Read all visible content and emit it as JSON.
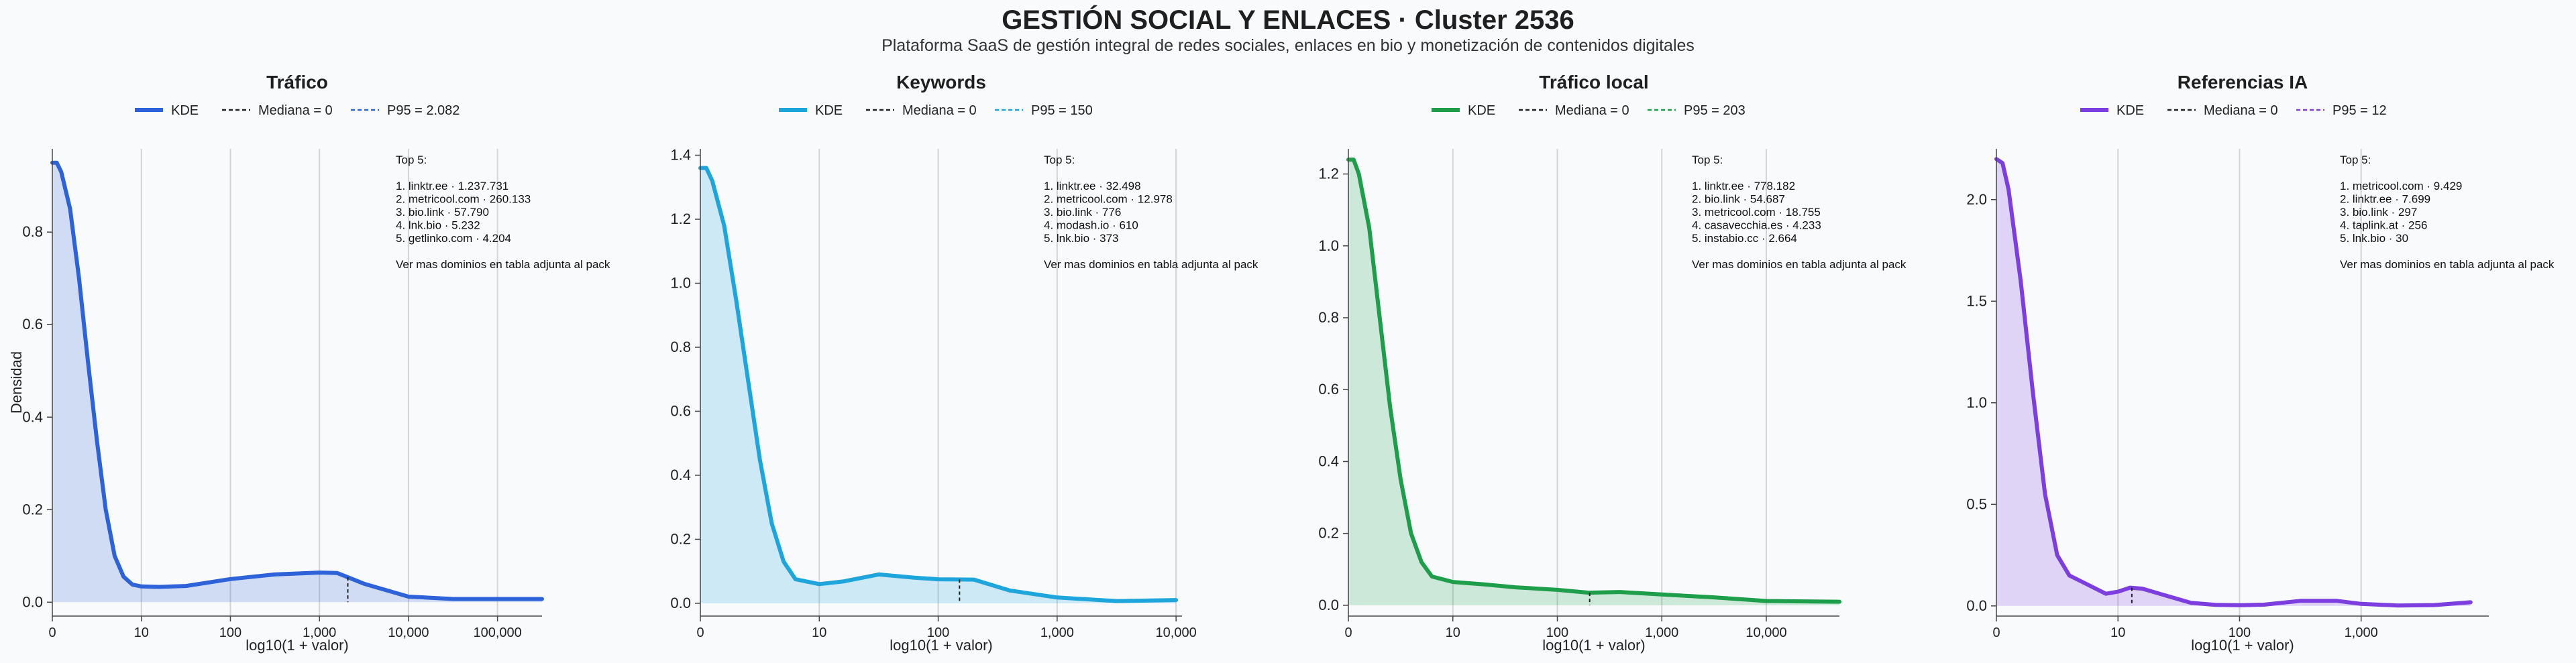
{
  "title": "GESTIÓN SOCIAL Y ENLACES · Cluster 2536",
  "subtitle": "Plataforma SaaS de gestión integral de redes sociales, enlaces en bio y monetización de contenidos digitales",
  "colors": {
    "traffic": "#2e62d9",
    "keywords": "#1ea5dc",
    "local": "#1e9e4a",
    "ai": "#7d3ee0",
    "median": "#222222"
  },
  "chart_data": [
    {
      "type": "area",
      "title": "Tráfico",
      "xlabel": "log10(1 + valor)",
      "ylabel": "Densidad",
      "x_scale": "log10(1+x)",
      "xlim": [
        0,
        5.5
      ],
      "ylim": [
        -0.03,
        0.98
      ],
      "x_ticks": [
        0,
        1,
        2,
        3,
        4,
        5
      ],
      "x_tick_labels": [
        "0",
        "10",
        "100",
        "1,000",
        "10,000",
        "100,000"
      ],
      "y_ticks": [
        0,
        0.2,
        0.4,
        0.6,
        0.8
      ],
      "y_tick_labels": [
        "0.0",
        "0.2",
        "0.4",
        "0.6",
        "0.8"
      ],
      "legend": [
        "KDE",
        "Mediana = 0",
        "P95 = 2.082"
      ],
      "legend_position": "top-center",
      "grid": "vertical",
      "median": 0,
      "p95": 2082,
      "color_key": "traffic",
      "x": [
        0,
        0.05,
        0.1,
        0.2,
        0.3,
        0.4,
        0.5,
        0.6,
        0.7,
        0.8,
        0.9,
        1.0,
        1.2,
        1.5,
        2.0,
        2.5,
        3.0,
        3.2,
        3.5,
        4.0,
        4.5,
        5.0,
        5.5
      ],
      "y": [
        0.95,
        0.95,
        0.93,
        0.85,
        0.7,
        0.52,
        0.35,
        0.2,
        0.1,
        0.055,
        0.038,
        0.034,
        0.033,
        0.035,
        0.05,
        0.06,
        0.064,
        0.063,
        0.04,
        0.012,
        0.007,
        0.007,
        0.007
      ],
      "annotation": [
        "Top 5:",
        "",
        "1. linktr.ee · 1.237.731",
        "2. metricool.com · 260.133",
        "3. bio.link · 57.790",
        "4. lnk.bio · 5.232",
        "5. getlinko.com · 4.204",
        "",
        "Ver mas dominios en tabla adjunta al pack"
      ]
    },
    {
      "type": "area",
      "title": "Keywords",
      "xlabel": "log10(1 + valor)",
      "ylabel": "",
      "x_scale": "log10(1+x)",
      "xlim": [
        0,
        4.05
      ],
      "ylim": [
        -0.04,
        1.42
      ],
      "x_ticks": [
        0,
        1,
        2,
        3,
        4
      ],
      "x_tick_labels": [
        "0",
        "10",
        "100",
        "1,000",
        "10,000"
      ],
      "y_ticks": [
        0,
        0.2,
        0.4,
        0.6,
        0.8,
        1.0,
        1.2,
        1.4
      ],
      "y_tick_labels": [
        "0.0",
        "0.2",
        "0.4",
        "0.6",
        "0.8",
        "1.0",
        "1.2",
        "1.4"
      ],
      "legend": [
        "KDE",
        "Mediana = 0",
        "P95 = 150"
      ],
      "legend_position": "top-center",
      "grid": "vertical",
      "median": 0,
      "p95": 150,
      "color_key": "keywords",
      "x": [
        0,
        0.05,
        0.1,
        0.2,
        0.3,
        0.4,
        0.5,
        0.6,
        0.7,
        0.8,
        1.0,
        1.2,
        1.5,
        1.8,
        2.0,
        2.3,
        2.6,
        3.0,
        3.5,
        4.0
      ],
      "y": [
        1.36,
        1.36,
        1.32,
        1.18,
        0.95,
        0.7,
        0.45,
        0.25,
        0.13,
        0.075,
        0.06,
        0.068,
        0.09,
        0.08,
        0.075,
        0.074,
        0.04,
        0.018,
        0.007,
        0.01
      ],
      "annotation": [
        "Top 5:",
        "",
        "1. linktr.ee · 32.498",
        "2. metricool.com · 12.978",
        "3. bio.link · 776",
        "4. modash.io · 610",
        "5. lnk.bio · 373",
        "",
        "Ver mas dominios en tabla adjunta al pack"
      ]
    },
    {
      "type": "area",
      "title": "Tráfico local",
      "xlabel": "log10(1 + valor)",
      "ylabel": "",
      "x_scale": "log10(1+x)",
      "xlim": [
        0,
        4.7
      ],
      "ylim": [
        -0.03,
        1.27
      ],
      "x_ticks": [
        0,
        1,
        2,
        3,
        4
      ],
      "x_tick_labels": [
        "0",
        "10",
        "100",
        "1,000",
        "10,000"
      ],
      "y_ticks": [
        0,
        0.2,
        0.4,
        0.6,
        0.8,
        1.0,
        1.2
      ],
      "y_tick_labels": [
        "0.0",
        "0.2",
        "0.4",
        "0.6",
        "0.8",
        "1.0",
        "1.2"
      ],
      "legend": [
        "KDE",
        "Mediana = 0",
        "P95 = 203"
      ],
      "legend_position": "top-center",
      "grid": "vertical",
      "median": 0,
      "p95": 203,
      "color_key": "local",
      "x": [
        0,
        0.05,
        0.1,
        0.2,
        0.3,
        0.4,
        0.5,
        0.6,
        0.7,
        0.8,
        1.0,
        1.3,
        1.6,
        2.0,
        2.3,
        2.6,
        3.0,
        3.5,
        4.0,
        4.7
      ],
      "y": [
        1.24,
        1.24,
        1.2,
        1.05,
        0.8,
        0.55,
        0.35,
        0.2,
        0.12,
        0.08,
        0.065,
        0.058,
        0.05,
        0.043,
        0.035,
        0.037,
        0.03,
        0.022,
        0.012,
        0.01
      ],
      "annotation": [
        "Top 5:",
        "",
        "1. linktr.ee · 778.182",
        "2. bio.link · 54.687",
        "3. metricool.com · 18.755",
        "4. casavecchia.es · 4.233",
        "5. instabio.cc · 2.664",
        "",
        "Ver mas dominios en tabla adjunta al pack"
      ]
    },
    {
      "type": "area",
      "title": "Referencias IA",
      "xlabel": "log10(1 + valor)",
      "ylabel": "",
      "x_scale": "log10(1+x)",
      "xlim": [
        0,
        4.05
      ],
      "ylim": [
        -0.05,
        2.25
      ],
      "x_ticks": [
        0,
        1,
        2,
        3
      ],
      "x_tick_labels": [
        "0",
        "10",
        "100",
        "1,000"
      ],
      "y_ticks": [
        0,
        0.5,
        1.0,
        1.5,
        2.0
      ],
      "y_tick_labels": [
        "0.0",
        "0.5",
        "1.0",
        "1.5",
        "2.0"
      ],
      "legend": [
        "KDE",
        "Mediana = 0",
        "P95 = 12"
      ],
      "legend_position": "top-center",
      "grid": "vertical",
      "median": 0,
      "p95": 12,
      "color_key": "ai",
      "x": [
        0,
        0.05,
        0.1,
        0.2,
        0.3,
        0.4,
        0.5,
        0.6,
        0.7,
        0.8,
        0.9,
        1.0,
        1.1,
        1.2,
        1.4,
        1.6,
        1.8,
        2.0,
        2.2,
        2.5,
        2.8,
        3.0,
        3.3,
        3.6,
        3.9
      ],
      "y": [
        2.2,
        2.18,
        2.05,
        1.6,
        1.05,
        0.55,
        0.25,
        0.15,
        0.12,
        0.09,
        0.06,
        0.07,
        0.09,
        0.085,
        0.05,
        0.015,
        0.005,
        0.003,
        0.006,
        0.025,
        0.025,
        0.01,
        0.002,
        0.004,
        0.018
      ],
      "annotation": [
        "Top 5:",
        "",
        "1. metricool.com · 9.429",
        "2. linktr.ee · 7.699",
        "3. bio.link · 297",
        "4. taplink.at · 256",
        "5. lnk.bio · 30",
        "",
        "Ver mas dominios en tabla adjunta al pack"
      ]
    }
  ]
}
